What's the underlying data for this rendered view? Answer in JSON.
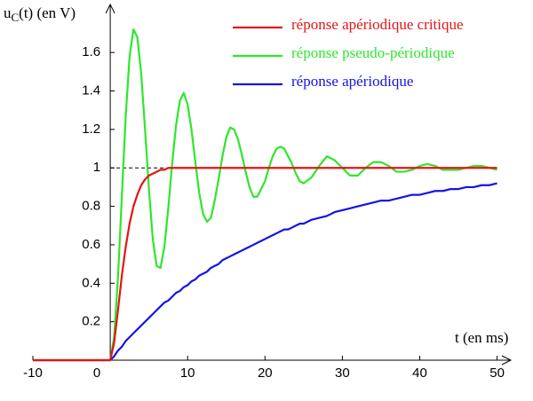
{
  "chart_data": {
    "type": "line",
    "ylabel": {
      "text": "u",
      "subscript": "C",
      "suffix": "(t) (en V)"
    },
    "xlabel": "t (en ms)",
    "xlim": [
      -10,
      52
    ],
    "ylim": [
      0,
      1.85
    ],
    "xticks": [
      -10,
      0,
      10,
      20,
      30,
      40,
      50
    ],
    "yticks": [
      0.2,
      0.4,
      0.6,
      0.8,
      1,
      1.2,
      1.4,
      1.6
    ],
    "grid": false,
    "legend": "upper right",
    "reference_y": 1,
    "x": [
      -10,
      0,
      0.5,
      1,
      1.5,
      2,
      2.5,
      3,
      3.5,
      4,
      4.5,
      5,
      5.5,
      6,
      6.5,
      7,
      7.5,
      8,
      8.5,
      9,
      9.5,
      10,
      10.5,
      11,
      11.5,
      12,
      12.5,
      13,
      13.5,
      14,
      14.5,
      15,
      15.5,
      16,
      16.5,
      17,
      17.5,
      18,
      18.5,
      19,
      19.5,
      20,
      20.5,
      21,
      21.5,
      22,
      22.5,
      23,
      23.5,
      24,
      24.5,
      25,
      26,
      27,
      28,
      29,
      30,
      31,
      32,
      33,
      34,
      35,
      36,
      37,
      38,
      39,
      40,
      41,
      42,
      43,
      44,
      45,
      46,
      47,
      48,
      49,
      50
    ],
    "series": [
      {
        "name": "réponse apériodique",
        "color": "#1414e6",
        "values": [
          0,
          0,
          0.02,
          0.05,
          0.07,
          0.1,
          0.12,
          0.14,
          0.16,
          0.18,
          0.2,
          0.22,
          0.24,
          0.26,
          0.28,
          0.3,
          0.31,
          0.33,
          0.35,
          0.36,
          0.38,
          0.39,
          0.41,
          0.42,
          0.44,
          0.45,
          0.46,
          0.48,
          0.49,
          0.5,
          0.52,
          0.53,
          0.54,
          0.55,
          0.56,
          0.57,
          0.58,
          0.59,
          0.6,
          0.61,
          0.62,
          0.63,
          0.64,
          0.65,
          0.66,
          0.67,
          0.68,
          0.68,
          0.69,
          0.7,
          0.71,
          0.71,
          0.73,
          0.74,
          0.75,
          0.77,
          0.78,
          0.79,
          0.8,
          0.81,
          0.82,
          0.83,
          0.83,
          0.84,
          0.85,
          0.86,
          0.86,
          0.87,
          0.88,
          0.88,
          0.89,
          0.89,
          0.9,
          0.9,
          0.91,
          0.91,
          0.92
        ]
      },
      {
        "name": "réponse pseudo-périodique",
        "color": "#2ee62e",
        "values": [
          0,
          0,
          0.12,
          0.43,
          0.85,
          1.27,
          1.58,
          1.72,
          1.68,
          1.49,
          1.2,
          0.89,
          0.63,
          0.49,
          0.48,
          0.59,
          0.79,
          1.02,
          1.22,
          1.35,
          1.39,
          1.33,
          1.2,
          1.03,
          0.87,
          0.76,
          0.72,
          0.74,
          0.83,
          0.94,
          1.06,
          1.16,
          1.21,
          1.2,
          1.15,
          1.07,
          0.98,
          0.9,
          0.85,
          0.85,
          0.89,
          0.93,
          1,
          1.06,
          1.1,
          1.11,
          1.1,
          1.06,
          1.02,
          0.97,
          0.93,
          0.92,
          0.95,
          1.01,
          1.06,
          1.04,
          1,
          0.96,
          0.96,
          1,
          1.03,
          1.03,
          1.01,
          0.98,
          0.98,
          0.99,
          1.01,
          1.02,
          1.01,
          0.99,
          0.99,
          0.99,
          1,
          1.01,
          1.01,
          1,
          0.99
        ]
      },
      {
        "name": "réponse apériodique critique",
        "color": "#e61414",
        "values": [
          0,
          0,
          0.09,
          0.26,
          0.44,
          0.59,
          0.71,
          0.8,
          0.86,
          0.91,
          0.94,
          0.96,
          0.97,
          0.98,
          0.99,
          0.99,
          1,
          1,
          1,
          1,
          1,
          1,
          1,
          1,
          1,
          1,
          1,
          1,
          1,
          1,
          1,
          1,
          1,
          1,
          1,
          1,
          1,
          1,
          1,
          1,
          1,
          1,
          1,
          1,
          1,
          1,
          1,
          1,
          1,
          1,
          1,
          1,
          1,
          1,
          1,
          1,
          1,
          1,
          1,
          1,
          1,
          1,
          1,
          1,
          1,
          1,
          1,
          1,
          1,
          1,
          1,
          1,
          1,
          1,
          1,
          1,
          1
        ]
      }
    ]
  }
}
